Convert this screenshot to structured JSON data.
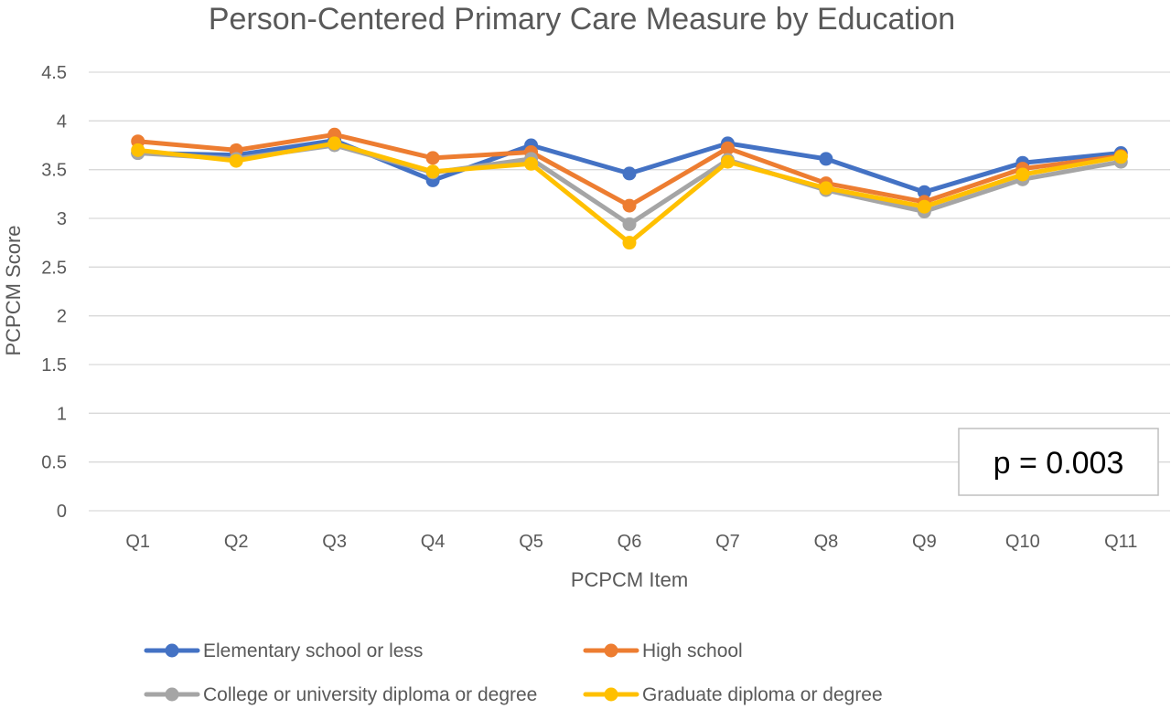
{
  "chart_data": {
    "type": "line",
    "title": "Person-Centered Primary Care Measure by Education",
    "xlabel": "PCPCM Item",
    "ylabel": "PCPCM Score",
    "ylim": [
      0,
      4.5
    ],
    "yticks": [
      "0",
      "0.5",
      "1",
      "1.5",
      "2",
      "2.5",
      "3",
      "3.5",
      "4",
      "4.5"
    ],
    "categories": [
      "Q1",
      "Q2",
      "Q3",
      "Q4",
      "Q5",
      "Q6",
      "Q7",
      "Q8",
      "Q9",
      "Q10",
      "Q11"
    ],
    "grid": "horizontal",
    "legend_position": "bottom",
    "series": [
      {
        "name": "Elementary school or less",
        "color": "#4472C4",
        "values": [
          3.67,
          3.65,
          3.8,
          3.39,
          3.75,
          3.46,
          3.77,
          3.61,
          3.27,
          3.57,
          3.67
        ]
      },
      {
        "name": "High school",
        "color": "#ED7D31",
        "values": [
          3.79,
          3.7,
          3.86,
          3.62,
          3.68,
          3.13,
          3.72,
          3.36,
          3.17,
          3.51,
          3.64
        ]
      },
      {
        "name": "College or university diploma or degree",
        "color": "#A5A5A5",
        "values": [
          3.67,
          3.61,
          3.75,
          3.47,
          3.61,
          2.94,
          3.6,
          3.29,
          3.07,
          3.4,
          3.58
        ]
      },
      {
        "name": "Graduate diploma or degree",
        "color": "#FFC000",
        "values": [
          3.7,
          3.59,
          3.77,
          3.48,
          3.56,
          2.75,
          3.58,
          3.31,
          3.12,
          3.45,
          3.63
        ]
      }
    ],
    "annotation": "p = 0.003"
  }
}
